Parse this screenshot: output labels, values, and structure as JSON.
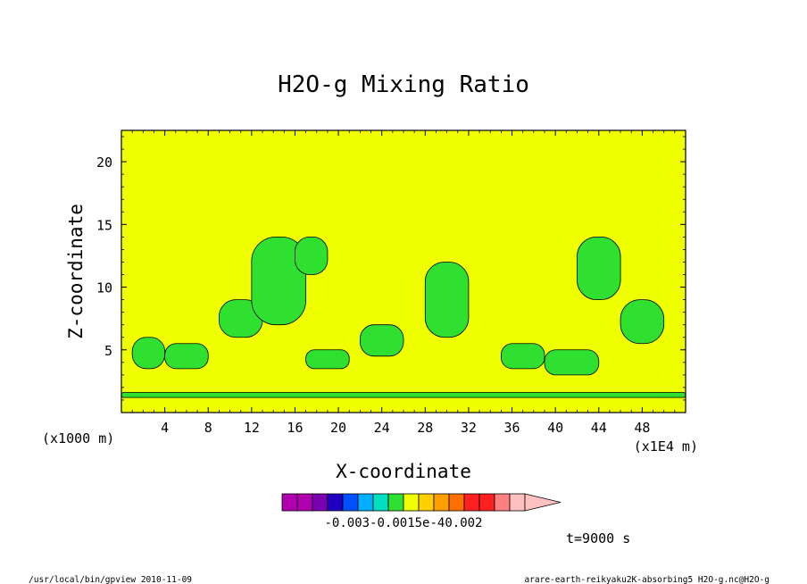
{
  "chart_data": {
    "type": "heatmap",
    "title": "H2O-g Mixing Ratio",
    "xlabel": "X-coordinate",
    "ylabel": "Z-coordinate",
    "x_unit_note": "(x1E4 m)",
    "y_unit_note": "(x1000 m)",
    "xlim": [
      0,
      52
    ],
    "ylim": [
      0,
      22.5
    ],
    "x_ticks": [
      4,
      8,
      12,
      16,
      20,
      24,
      28,
      32,
      36,
      40,
      44,
      48
    ],
    "y_ticks": [
      5,
      10,
      15,
      20
    ],
    "time_label": "t=9000 s",
    "colorbar": {
      "labels_text": "-0.003-0.0015e-40.002",
      "colors": [
        "#b000b0",
        "#b000b0",
        "#7a00b0",
        "#2000c0",
        "#0050ff",
        "#00b0ff",
        "#00e0c0",
        "#30e030",
        "#f0ff00",
        "#ffd000",
        "#ffa000",
        "#ff7000",
        "#ff2020",
        "#ff2020",
        "#ff8080",
        "#ffc0c0"
      ]
    },
    "background_color": "#f0ff00",
    "contour_color": "#30e030",
    "regions": [
      {
        "x": [
          0,
          52
        ],
        "z": [
          1.2,
          1.6
        ]
      },
      {
        "x": [
          1,
          4
        ],
        "z": [
          3.5,
          6
        ]
      },
      {
        "x": [
          4,
          8
        ],
        "z": [
          3.5,
          5.5
        ]
      },
      {
        "x": [
          9,
          13
        ],
        "z": [
          6,
          9
        ]
      },
      {
        "x": [
          12,
          17
        ],
        "z": [
          7,
          14
        ]
      },
      {
        "x": [
          16,
          19
        ],
        "z": [
          11,
          14
        ]
      },
      {
        "x": [
          17,
          21
        ],
        "z": [
          3.5,
          5
        ]
      },
      {
        "x": [
          22,
          26
        ],
        "z": [
          4.5,
          7
        ]
      },
      {
        "x": [
          28,
          32
        ],
        "z": [
          6,
          12
        ]
      },
      {
        "x": [
          35,
          39
        ],
        "z": [
          3.5,
          5.5
        ]
      },
      {
        "x": [
          39,
          44
        ],
        "z": [
          3,
          5
        ]
      },
      {
        "x": [
          42,
          46
        ],
        "z": [
          9,
          14
        ]
      },
      {
        "x": [
          46,
          50
        ],
        "z": [
          5.5,
          9
        ]
      }
    ]
  },
  "footer": {
    "left": "/usr/local/bin/gpview  2010-11-09",
    "right": "arare-earth-reikyaku2K-absorbing5_H2O-g.nc@H2O-g"
  }
}
